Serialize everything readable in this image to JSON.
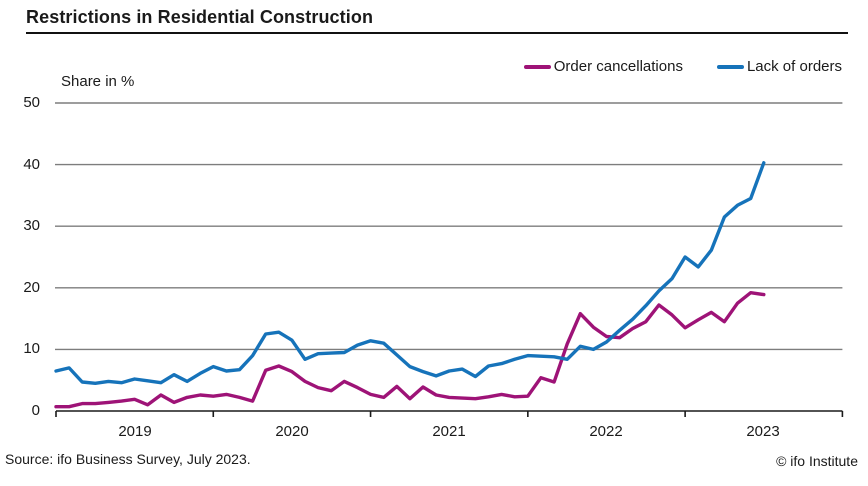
{
  "header": {
    "title": "Restrictions in Residential Construction"
  },
  "chart_data": {
    "type": "line",
    "title": "Restrictions in Residential Construction",
    "ylabel": "Share in %",
    "xlabel": "",
    "x_start": "2019-01",
    "x_interval": "month",
    "ylim": [
      0,
      50
    ],
    "y_tick_step": 10,
    "grid": "horizontal",
    "legend_position": "top-right",
    "x_tick_labels": [
      "2019",
      "2020",
      "2021",
      "2022",
      "2023"
    ],
    "y_tick_labels": [
      "50",
      "40",
      "30",
      "20",
      "10",
      "0"
    ],
    "series": [
      {
        "name": "Order cancellations",
        "color": "#9e1377",
        "values": [
          0.7,
          0.7,
          1.2,
          1.2,
          1.4,
          1.6,
          1.9,
          1.0,
          2.6,
          1.4,
          2.2,
          2.6,
          2.4,
          2.7,
          2.2,
          1.6,
          6.6,
          7.3,
          6.4,
          4.8,
          3.8,
          3.3,
          4.8,
          3.8,
          2.7,
          2.2,
          4.0,
          2.0,
          3.9,
          2.6,
          2.2,
          2.1,
          2.0,
          2.3,
          2.7,
          2.3,
          2.4,
          5.4,
          4.7,
          10.9,
          15.8,
          13.6,
          12.1,
          11.9,
          13.4,
          14.5,
          17.2,
          15.6,
          13.5,
          14.8,
          16.0,
          14.5,
          17.5,
          19.2,
          18.9
        ]
      },
      {
        "name": "Lack of orders",
        "color": "#1673ba",
        "values": [
          6.5,
          7.0,
          4.7,
          4.5,
          4.8,
          4.6,
          5.2,
          4.9,
          4.6,
          5.9,
          4.8,
          6.1,
          7.2,
          6.5,
          6.7,
          9.0,
          12.5,
          12.8,
          11.5,
          8.4,
          9.3,
          9.4,
          9.5,
          10.7,
          11.4,
          11.0,
          9.1,
          7.2,
          6.4,
          5.7,
          6.5,
          6.8,
          5.6,
          7.3,
          7.7,
          8.4,
          9.0,
          8.9,
          8.8,
          8.4,
          10.5,
          10.0,
          11.2,
          13.1,
          14.9,
          17.1,
          19.5,
          21.5,
          25.0,
          23.4,
          26.1,
          31.5,
          33.4,
          34.5,
          40.3
        ]
      }
    ]
  },
  "footer": {
    "source": "Source: ifo Business Survey, July 2023.",
    "copyright": "© ifo Institute"
  }
}
